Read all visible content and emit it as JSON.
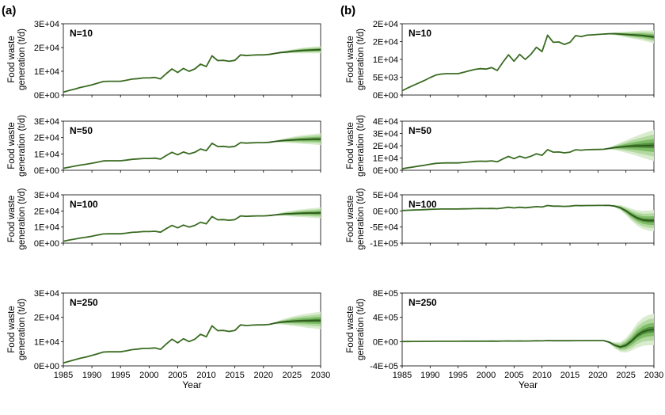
{
  "figure": {
    "panels": [
      "(a)",
      "(b)"
    ]
  },
  "chart_data": [
    {
      "id": "a1",
      "type": "line",
      "label": "N=10",
      "col": 0,
      "row": 0,
      "yticks": [
        "0E+00",
        "1E+04",
        "2E+04",
        "3E+04"
      ],
      "ylim": [
        0,
        30000
      ],
      "xticks": [
        "1985",
        "1990",
        "1995",
        "2000",
        "2005",
        "2010",
        "2015",
        "2020",
        "2025",
        "2030"
      ],
      "xlim": [
        1985,
        2030
      ],
      "show_x": false,
      "ylabel": [
        "Food waste",
        "generation (t/d)"
      ],
      "xlabel": "",
      "forecast": {
        "center": [
          17500,
          17900,
          18100,
          18400,
          18600,
          18800,
          18900,
          19000,
          19100
        ],
        "spread": [
          200,
          400,
          600,
          800,
          1000,
          1200,
          1300,
          1400,
          1500
        ]
      }
    },
    {
      "id": "a2",
      "type": "line",
      "label": "N=50",
      "col": 0,
      "row": 1,
      "yticks": [
        "0E+00",
        "1E+04",
        "2E+04",
        "3E+04"
      ],
      "ylim": [
        0,
        30000
      ],
      "xticks": [
        "1985",
        "1990",
        "1995",
        "2000",
        "2005",
        "2010",
        "2015",
        "2020",
        "2025",
        "2030"
      ],
      "xlim": [
        1985,
        2030
      ],
      "show_x": false,
      "ylabel": [
        "Food waste",
        "generation (t/d)"
      ],
      "xlabel": "",
      "forecast": {
        "center": [
          17600,
          18000,
          18300,
          18500,
          18700,
          18800,
          18900,
          19000,
          19000
        ],
        "spread": [
          400,
          900,
          1400,
          1900,
          2300,
          2700,
          3000,
          3300,
          3600
        ]
      }
    },
    {
      "id": "a3",
      "type": "line",
      "label": "N=100",
      "col": 0,
      "row": 2,
      "yticks": [
        "0E+00",
        "1E+04",
        "2E+04",
        "3E+04"
      ],
      "ylim": [
        0,
        30000
      ],
      "xticks": [
        "1985",
        "1990",
        "1995",
        "2000",
        "2005",
        "2010",
        "2015",
        "2020",
        "2025",
        "2030"
      ],
      "xlim": [
        1985,
        2030
      ],
      "show_x": false,
      "ylabel": [
        "Food waste",
        "generation (t/d)"
      ],
      "xlabel": "",
      "forecast": {
        "center": [
          17500,
          17900,
          18200,
          18300,
          18500,
          18600,
          18700,
          18700,
          18800
        ],
        "spread": [
          400,
          900,
          1400,
          1800,
          2200,
          2500,
          2800,
          3100,
          3400
        ]
      }
    },
    {
      "id": "a4",
      "type": "line",
      "label": "N=250",
      "col": 0,
      "row": 3,
      "yticks": [
        "0E+00",
        "1E+04",
        "2E+04",
        "3E+04"
      ],
      "ylim": [
        0,
        30000
      ],
      "xticks": [
        "1985",
        "1990",
        "1995",
        "2000",
        "2005",
        "2010",
        "2015",
        "2020",
        "2025",
        "2030"
      ],
      "xlim": [
        1985,
        2030
      ],
      "show_x": true,
      "ylabel": [
        "Food waste",
        "generation (t/d)"
      ],
      "xlabel": "Year",
      "forecast": {
        "center": [
          17600,
          18000,
          18200,
          18400,
          18500,
          18600,
          18600,
          18700,
          18700
        ],
        "spread": [
          400,
          900,
          1400,
          1900,
          2300,
          2700,
          3000,
          3300,
          3600
        ]
      }
    },
    {
      "id": "b1",
      "type": "line",
      "label": "N=10",
      "col": 1,
      "row": 0,
      "yticks": [
        "0E+00",
        "5E+03",
        "1E+04",
        "2E+04",
        "2E+04"
      ],
      "ylim": [
        0,
        20000
      ],
      "xticks": [
        "1985",
        "1990",
        "1995",
        "2000",
        "2005",
        "2010",
        "2015",
        "2020",
        "2025",
        "2030"
      ],
      "xlim": [
        1985,
        2030
      ],
      "show_x": false,
      "ylabel": [
        "Food waste",
        "generation (t/d)"
      ],
      "xlabel": "",
      "forecast": {
        "center": [
          17200,
          17200,
          17100,
          17000,
          16900,
          16800,
          16700,
          16500,
          16300
        ],
        "spread": [
          200,
          400,
          600,
          800,
          1000,
          1200,
          1400,
          1600,
          1800
        ]
      }
    },
    {
      "id": "b2",
      "type": "line",
      "label": "N=50",
      "col": 1,
      "row": 1,
      "yticks": [
        "0E+00",
        "1E+04",
        "2E+04",
        "3E+04",
        "4E+04"
      ],
      "ylim": [
        0,
        40000
      ],
      "xticks": [
        "1985",
        "1990",
        "1995",
        "2000",
        "2005",
        "2010",
        "2015",
        "2020",
        "2025",
        "2030"
      ],
      "xlim": [
        1985,
        2030
      ],
      "show_x": false,
      "ylabel": [
        "Food waste",
        "generation (t/d)"
      ],
      "xlabel": "",
      "forecast": {
        "center": [
          17800,
          18500,
          19000,
          19400,
          19700,
          19900,
          20000,
          20100,
          20200
        ],
        "spread": [
          800,
          2000,
          3500,
          5000,
          6600,
          8200,
          9800,
          11300,
          12800
        ]
      }
    },
    {
      "id": "b3",
      "type": "line",
      "label": "N=100",
      "col": 1,
      "row": 2,
      "yticks": [
        "-1E+05",
        "-5E+04",
        "0E+00",
        "5E+04"
      ],
      "ylim": [
        -100000,
        50000
      ],
      "xticks": [
        "1985",
        "1990",
        "1995",
        "2000",
        "2005",
        "2010",
        "2015",
        "2020",
        "2025",
        "2030"
      ],
      "xlim": [
        1985,
        2030
      ],
      "show_x": false,
      "ylabel": [
        "Food waste",
        "generation (t/d)"
      ],
      "xlabel": "",
      "forecast": {
        "center": [
          17000,
          15000,
          10000,
          0,
          -12000,
          -22000,
          -28000,
          -30000,
          -30000
        ],
        "spread": [
          1000,
          4000,
          8000,
          13000,
          19000,
          24000,
          28000,
          31000,
          33000
        ]
      }
    },
    {
      "id": "b4",
      "type": "line",
      "label": "N=250",
      "col": 1,
      "row": 3,
      "yticks": [
        "-4E+05",
        "0E+00",
        "4E+05",
        "8E+05"
      ],
      "ylim": [
        -400000,
        800000
      ],
      "xticks": [
        "1985",
        "1990",
        "1995",
        "2000",
        "2005",
        "2010",
        "2015",
        "2020",
        "2025",
        "2030"
      ],
      "xlim": [
        1985,
        2030
      ],
      "show_x": true,
      "ylabel": [
        "Food waste",
        "generation (t/d)"
      ],
      "xlabel": "Year",
      "forecast": {
        "center": [
          -10000,
          -60000,
          -90000,
          -60000,
          10000,
          100000,
          160000,
          190000,
          200000
        ],
        "spread": [
          20000,
          50000,
          80000,
          120000,
          160000,
          200000,
          230000,
          250000,
          260000
        ]
      }
    }
  ],
  "history": {
    "years": [
      1985,
      1986,
      1987,
      1988,
      1989,
      1990,
      1991,
      1992,
      1993,
      1994,
      1995,
      1996,
      1997,
      1998,
      1999,
      2000,
      2001,
      2002,
      2003,
      2004,
      2005,
      2006,
      2007,
      2008,
      2009,
      2010,
      2011,
      2012,
      2013,
      2014,
      2015,
      2016,
      2017,
      2018,
      2019,
      2020,
      2021
    ],
    "values_a": [
      1200,
      1900,
      2500,
      3200,
      3700,
      4300,
      5000,
      5700,
      5800,
      5800,
      5800,
      6200,
      6700,
      6900,
      7200,
      7200,
      7400,
      6800,
      9000,
      11000,
      9500,
      11200,
      10000,
      11000,
      13000,
      12000,
      16500,
      14500,
      14600,
      14200,
      14600,
      16900,
      16600,
      16800,
      16900,
      16900,
      17100
    ],
    "values_b": [
      1200,
      2000,
      2700,
      3400,
      4100,
      4900,
      5600,
      5900,
      6000,
      6000,
      6000,
      6400,
      6800,
      7200,
      7400,
      7300,
      7700,
      6900,
      9200,
      11300,
      9500,
      11400,
      10000,
      11400,
      13400,
      12200,
      16800,
      14800,
      14900,
      14200,
      14800,
      16700,
      16400,
      16800,
      16900,
      17000,
      17100
    ]
  },
  "forecast_years": [
    2022,
    2023,
    2024,
    2025,
    2026,
    2027,
    2028,
    2029,
    2030
  ],
  "colors": {
    "history_line": "#3a6b22",
    "center_line": "#2f5a1e",
    "band_outer": "#d9ecce",
    "band_mid": "#b2d9a0",
    "band_inner": "#7fbc68",
    "band_core": "#4e8f3a",
    "frame": "#000000"
  }
}
